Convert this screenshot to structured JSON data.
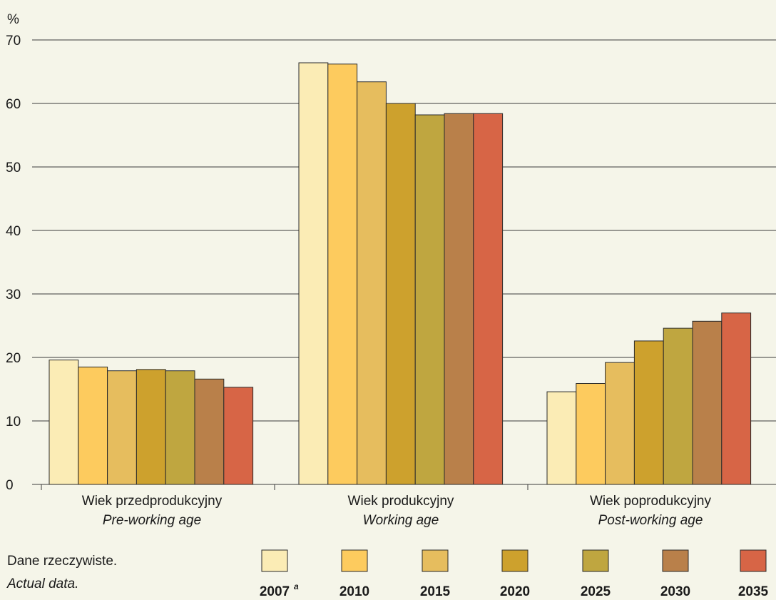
{
  "chart_data": {
    "type": "bar",
    "ylabel": "%",
    "ylim": [
      0,
      70
    ],
    "yticks": [
      0,
      10,
      20,
      30,
      40,
      50,
      60,
      70
    ],
    "grid": true,
    "legend_position": "bottom",
    "categories": [
      {
        "pl": "Wiek przedprodukcyjny",
        "en": "Pre-working age"
      },
      {
        "pl": "Wiek produkcyjny",
        "en": "Working age"
      },
      {
        "pl": "Wiek poprodukcyjny",
        "en": "Post-working age"
      }
    ],
    "series": [
      {
        "name": "2007",
        "note": "a",
        "color": "#fbecb5",
        "values": [
          19.6,
          66.4,
          14.6
        ]
      },
      {
        "name": "2010",
        "color": "#fdcb5e",
        "values": [
          18.5,
          66.2,
          15.9
        ]
      },
      {
        "name": "2015",
        "color": "#e6bd5e",
        "values": [
          17.9,
          63.4,
          19.2
        ]
      },
      {
        "name": "2020",
        "color": "#cda12d",
        "values": [
          18.1,
          60.0,
          22.6
        ]
      },
      {
        "name": "2025",
        "color": "#bfa640",
        "values": [
          17.9,
          58.2,
          24.6
        ]
      },
      {
        "name": "2030",
        "color": "#b9804a",
        "values": [
          16.6,
          58.4,
          25.7
        ]
      },
      {
        "name": "2035",
        "color": "#d76546",
        "values": [
          15.3,
          58.4,
          27.0
        ]
      }
    ]
  },
  "footnote": {
    "pl": "Dane rzeczywiste.",
    "en": "Actual data."
  }
}
